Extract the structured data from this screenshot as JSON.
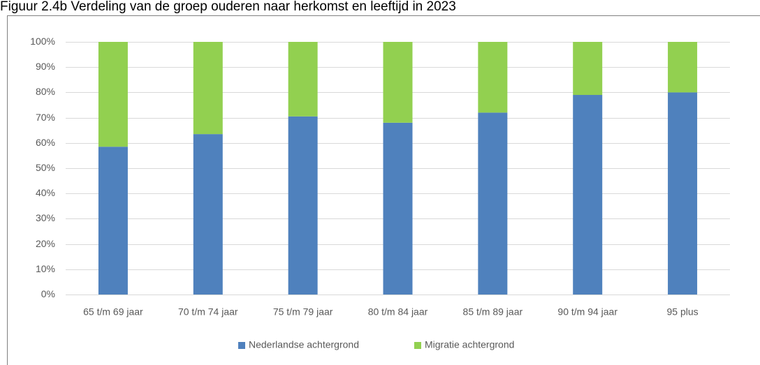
{
  "chart_data": {
    "type": "stacked_bar",
    "title": "Figuur 2.4b  Verdeling van de groep ouderen naar herkomst en leeftijd in 2023",
    "categories": [
      "65 t/m 69 jaar",
      "70 t/m 74 jaar",
      "75 t/m 79 jaar",
      "80 t/m 84 jaar",
      "85 t/m 89 jaar",
      "90 t/m 94 jaar",
      "95 plus"
    ],
    "series": [
      {
        "name": "Nederlandse achtergrond",
        "color": "#4f81bd",
        "values": [
          58.5,
          63.5,
          70.5,
          68,
          72,
          79,
          80
        ]
      },
      {
        "name": "Migratie achtergrond",
        "color": "#92d050",
        "values": [
          41.5,
          36.5,
          29.5,
          32,
          28,
          21,
          20
        ]
      }
    ],
    "ylim": [
      0,
      100
    ],
    "yticks": [
      {
        "value": 0,
        "label": "0%"
      },
      {
        "value": 10,
        "label": "10%"
      },
      {
        "value": 20,
        "label": "20%"
      },
      {
        "value": 30,
        "label": "30%"
      },
      {
        "value": 40,
        "label": "40%"
      },
      {
        "value": 50,
        "label": "50%"
      },
      {
        "value": 60,
        "label": "60%"
      },
      {
        "value": 70,
        "label": "70%"
      },
      {
        "value": 80,
        "label": "80%"
      },
      {
        "value": 90,
        "label": "90%"
      },
      {
        "value": 100,
        "label": "100%"
      }
    ],
    "grid": true,
    "legend": "bottom"
  }
}
